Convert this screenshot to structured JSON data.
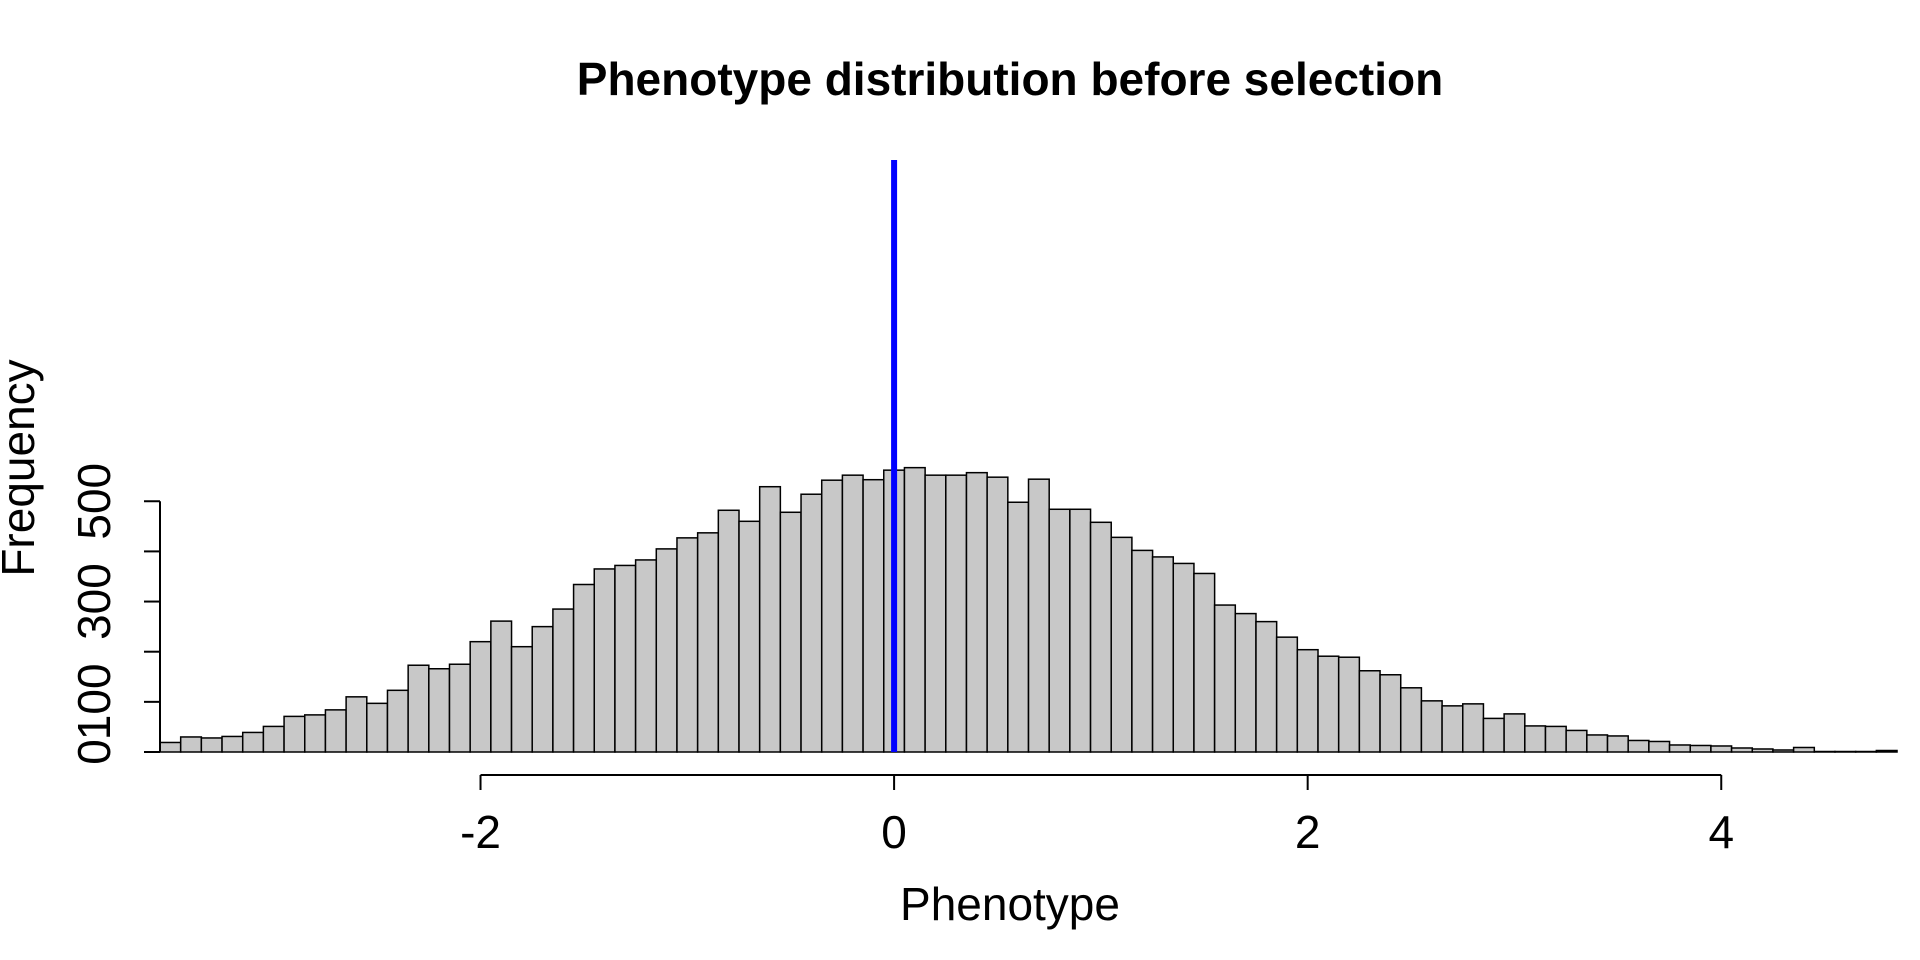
{
  "chart_data": {
    "type": "bar",
    "subtype": "histogram",
    "title": "Phenotype distribution before selection",
    "xlabel": "Phenotype",
    "ylabel": "Frequency",
    "xlim": [
      -3.55,
      4.7
    ],
    "ylim": [
      0,
      560
    ],
    "x_ticks": [
      -2,
      0,
      2,
      4
    ],
    "x_tick_labels": [
      "-2",
      "0",
      "2",
      "4"
    ],
    "y_ticks": [
      0,
      100,
      200,
      300,
      400,
      500
    ],
    "y_tick_labels": [
      "0",
      "100",
      "",
      "300",
      "",
      "500"
    ],
    "bin_width": 0.1,
    "bin_start": -3.55,
    "counts": [
      19,
      30,
      28,
      31,
      39,
      51,
      71,
      74,
      84,
      110,
      97,
      123,
      173,
      166,
      175,
      220,
      261,
      210,
      250,
      285,
      334,
      365,
      372,
      383,
      405,
      427,
      437,
      482,
      460,
      529,
      478,
      514,
      542,
      552,
      543,
      562,
      567,
      552,
      552,
      557,
      548,
      498,
      544,
      484,
      484,
      458,
      428,
      402,
      389,
      376,
      356,
      293,
      276,
      260,
      229,
      204,
      191,
      189,
      162,
      154,
      128,
      102,
      92,
      96,
      67,
      76,
      52,
      51,
      43,
      34,
      32,
      23,
      21,
      14,
      13,
      12,
      8,
      6,
      4,
      9,
      1,
      1,
      1,
      3
    ],
    "bar_color": "#c8c8c8",
    "bar_border": "#000000",
    "reference_line": {
      "x": 0,
      "color": "#0000ff"
    },
    "grid": false,
    "legend": "none"
  }
}
